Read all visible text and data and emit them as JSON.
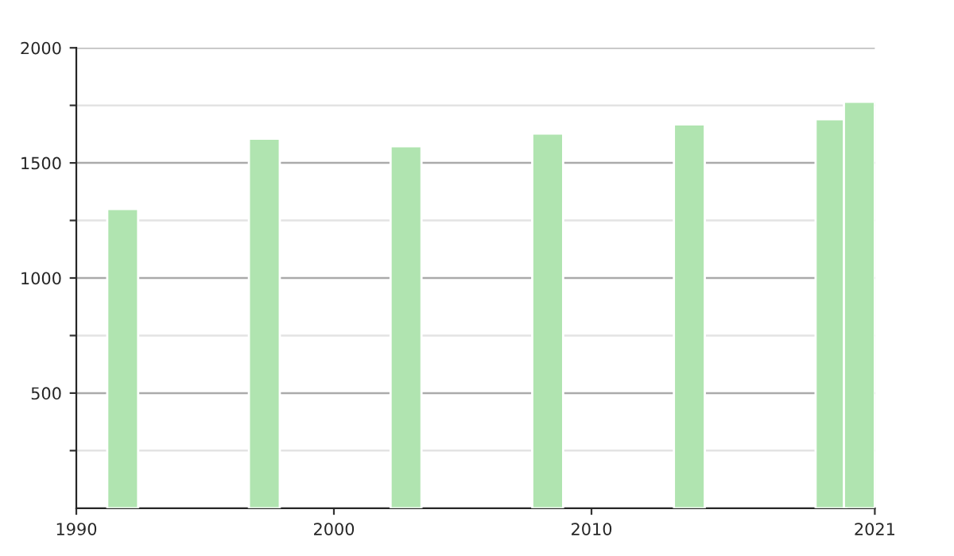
{
  "chart_data": {
    "type": "bar",
    "x": [
      1991.8,
      1997.3,
      2002.8,
      2008.3,
      2013.8,
      2019.3,
      2020.4
    ],
    "series": [
      {
        "color": "#b0e4b0",
        "values": [
          1300,
          1605,
          1572,
          1628,
          1667,
          1690,
          1766
        ]
      }
    ],
    "xlim": [
      1990,
      2021
    ],
    "xticks": [
      1990,
      2000,
      2010,
      2021
    ],
    "ylim": [
      0,
      2000
    ],
    "yticks": [
      {
        "value": 250,
        "label": null
      },
      500,
      {
        "value": 750,
        "label": null
      },
      1000,
      {
        "value": 1250,
        "label": null
      },
      1500,
      {
        "value": 1750,
        "label": null
      },
      2000
    ],
    "grid": "y"
  }
}
